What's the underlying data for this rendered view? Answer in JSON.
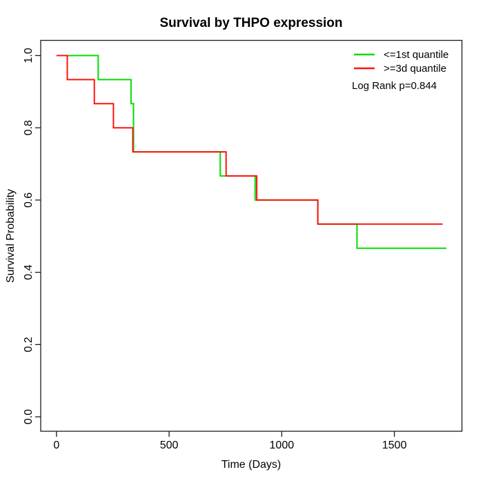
{
  "title": "Survival by THPO expression",
  "axes": {
    "x": {
      "label": "Time (Days)"
    },
    "y": {
      "label": "Survival Probability"
    }
  },
  "annotation": "Log Rank p=0.844",
  "colors": {
    "green_series": "#00DE00",
    "red_series": "#FF120A",
    "box": "#1a1a1a",
    "text": "#000000",
    "background": "#FFFFFF"
  },
  "chart_data": {
    "type": "line",
    "subtype": "kaplan-meier-step",
    "title": "Survival by THPO expression",
    "xlabel": "Time (Days)",
    "ylabel": "Survival Probability",
    "xlim": [
      -70,
      1800
    ],
    "ylim": [
      -0.04,
      1.042
    ],
    "x_ticks": [
      0,
      500,
      1000,
      1500
    ],
    "y_ticks": [
      0.0,
      0.2,
      0.4,
      0.6,
      0.8,
      1.0
    ],
    "grid": false,
    "legend_position": "top-right",
    "annotation": "Log Rank p=0.844",
    "series": [
      {
        "name": "<=1st quantile",
        "color": "#00DE00",
        "steps": [
          [
            0,
            1.0
          ],
          [
            185,
            0.9333
          ],
          [
            331,
            0.8667
          ],
          [
            342,
            0.7333
          ],
          [
            727,
            0.6667
          ],
          [
            882,
            0.6
          ],
          [
            1160,
            0.5333
          ],
          [
            1334,
            0.4667
          ]
        ],
        "end_time": 1731
      },
      {
        "name": ">=3d quantile",
        "color": "#FF120A",
        "steps": [
          [
            0,
            1.0
          ],
          [
            48,
            0.9333
          ],
          [
            168,
            0.8667
          ],
          [
            253,
            0.8
          ],
          [
            339,
            0.7333
          ],
          [
            753,
            0.6667
          ],
          [
            889,
            0.6
          ],
          [
            1160,
            0.5333
          ]
        ],
        "end_time": 1714
      }
    ]
  }
}
